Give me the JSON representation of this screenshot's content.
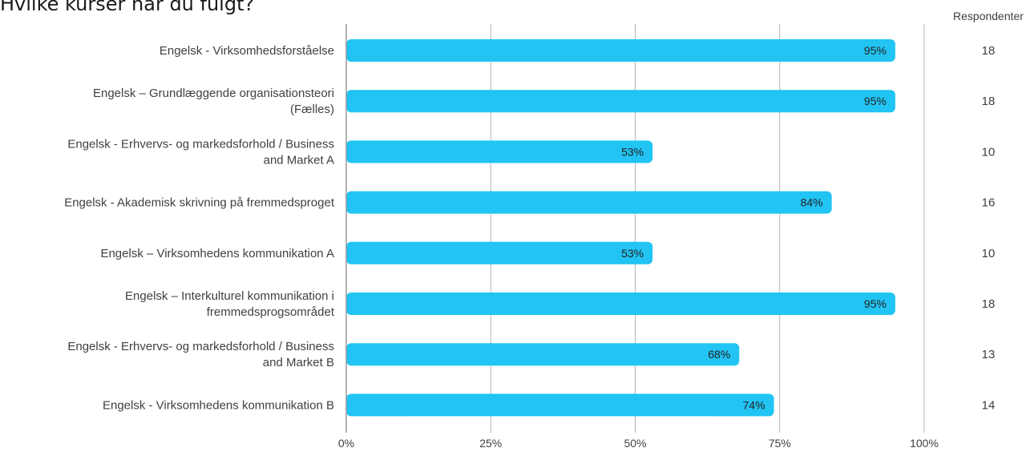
{
  "title": "Hvilke kurser har du fulgt?",
  "respondents_header": "Respondenter",
  "colors": {
    "bar": "#21c4f3",
    "grid": "#b3b3b3",
    "axis": "#999999",
    "text": "#404040",
    "value_label": "#222222"
  },
  "chart_data": {
    "type": "bar",
    "orientation": "horizontal",
    "title": "Hvilke kurser har du fulgt?",
    "xlim": [
      0,
      100
    ],
    "x_ticks": [
      "0%",
      "25%",
      "50%",
      "75%",
      "100%"
    ],
    "grid": true,
    "categories": [
      [
        "Engelsk - Virksomhedsforståelse"
      ],
      [
        "Engelsk – Grundlæggende organisationsteori",
        "(Fælles)"
      ],
      [
        "Engelsk - Erhvervs- og markedsforhold / Business",
        "and Market A"
      ],
      [
        "Engelsk - Akademisk skrivning på fremmedsproget"
      ],
      [
        "Engelsk – Virksomhedens kommunikation A"
      ],
      [
        "Engelsk – Interkulturel kommunikation i",
        "fremmedsprogsområdet"
      ],
      [
        "Engelsk - Erhvervs- og markedsforhold / Business",
        "and Market B"
      ],
      [
        "Engelsk - Virksomhedens kommunikation B"
      ]
    ],
    "values": [
      95,
      95,
      53,
      84,
      53,
      95,
      68,
      74
    ],
    "value_labels": [
      "95%",
      "95%",
      "53%",
      "84%",
      "53%",
      "95%",
      "68%",
      "74%"
    ],
    "respondents": [
      "18",
      "18",
      "10",
      "16",
      "10",
      "18",
      "13",
      "14"
    ]
  }
}
